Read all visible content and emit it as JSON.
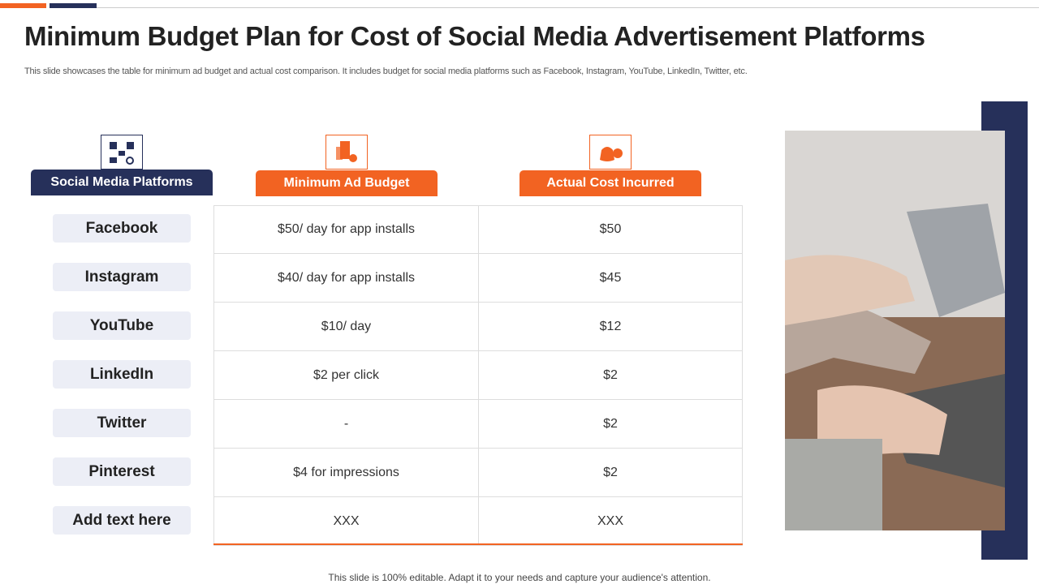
{
  "title": "Minimum Budget Plan for Cost of Social Media Advertisement Platforms",
  "subtitle": "This slide showcases the table for minimum ad budget and actual cost comparison. It includes budget for social media platforms such as Facebook, Instagram, YouTube, LinkedIn, Twitter,  etc.",
  "table": {
    "headers": [
      "Social Media Platforms",
      "Minimum Ad Budget",
      "Actual Cost Incurred"
    ],
    "rows": [
      [
        "Facebook",
        "$50/ day for app installs",
        "$50"
      ],
      [
        "Instagram",
        "$40/ day for app installs",
        "$45"
      ],
      [
        "YouTube",
        "$10/ day",
        "$12"
      ],
      [
        "LinkedIn",
        "$2 per click",
        "$2"
      ],
      [
        "Twitter",
        "-",
        "$2"
      ],
      [
        "Pinterest",
        "$4 for impressions",
        "$2"
      ],
      [
        "Add text here",
        "XXX",
        "XXX"
      ]
    ]
  },
  "footer": "This slide is 100% editable. Adapt it to your needs and capture your audience's attention."
}
